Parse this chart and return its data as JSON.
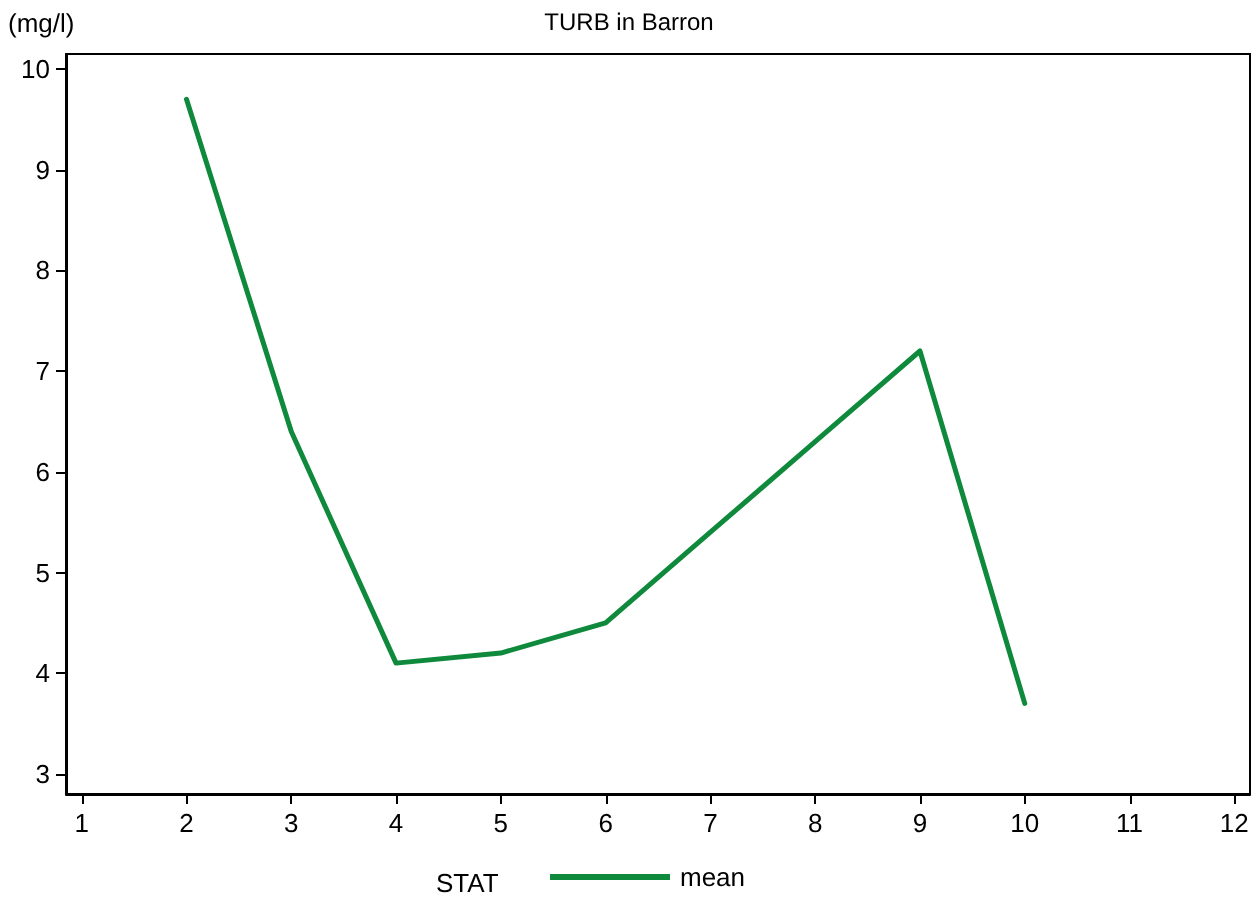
{
  "chart_data": {
    "type": "line",
    "title": "TURB in Barron",
    "ylabel": "(mg/l)",
    "legend_title": "STAT",
    "x": [
      2,
      3,
      4,
      5,
      6,
      7,
      8,
      9,
      10
    ],
    "series": [
      {
        "name": "mean",
        "color": "#0f8a3c",
        "values": [
          9.7,
          6.4,
          4.1,
          4.2,
          4.5,
          5.4,
          6.3,
          7.2,
          3.7
        ]
      }
    ],
    "xlim": [
      0.85,
      12.15
    ],
    "xticks": [
      1,
      2,
      3,
      4,
      5,
      6,
      7,
      8,
      9,
      10,
      11,
      12
    ],
    "ylim": [
      2.8,
      10.15
    ],
    "yticks": [
      3,
      4,
      5,
      6,
      7,
      8,
      9,
      10
    ],
    "grid": false,
    "legend": "bottom",
    "marker": "none",
    "line_style": "solid"
  }
}
